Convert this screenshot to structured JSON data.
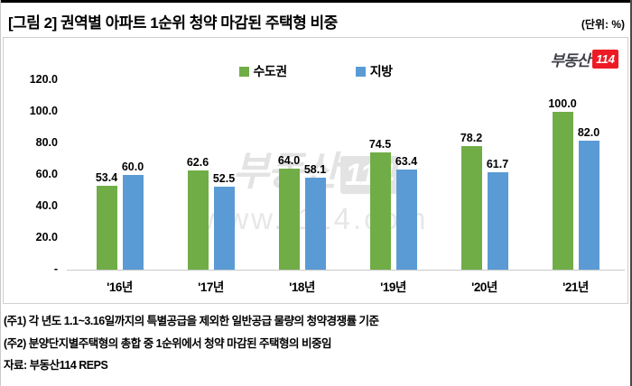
{
  "header": {
    "title": "[그림 2] 권역별 아파트 1순위 청약 마감된 주택형 비중",
    "unit": "(단위: %)"
  },
  "logo": {
    "brand": "부동산",
    "number": "114",
    "brand_color": "#3f4049",
    "box_color": "#ed1c24"
  },
  "watermark": {
    "brand": "부동산",
    "brand_number": "114",
    "url": "www.r114.com"
  },
  "chart_data": {
    "type": "bar",
    "title": "권역별 아파트 1순위 청약 마감된 주택형 비중",
    "unit": "%",
    "categories": [
      "'16년",
      "'17년",
      "'18년",
      "'19년",
      "'20년",
      "'21년"
    ],
    "series": [
      {
        "name": "수도권",
        "color": "#70AD47",
        "values": [
          53.4,
          62.6,
          64.0,
          74.5,
          78.2,
          100.0
        ]
      },
      {
        "name": "지방",
        "color": "#5B9BD5",
        "values": [
          60.0,
          52.5,
          58.1,
          63.4,
          61.7,
          82.0
        ]
      }
    ],
    "ylim": [
      0,
      120
    ],
    "yticks": [
      {
        "label": "120.0",
        "value": 120
      },
      {
        "label": "100.0",
        "value": 100
      },
      {
        "label": "80.0",
        "value": 80
      },
      {
        "label": "60.0",
        "value": 60
      },
      {
        "label": "40.0",
        "value": 40
      },
      {
        "label": "20.0",
        "value": 20
      },
      {
        "label": "-",
        "value": 0
      }
    ],
    "grid": false,
    "legend_position": "top-center",
    "data_labels": true
  },
  "footnotes": [
    "(주1) 각 년도 1.1~3.16일까지의 특별공급을 제외한 일반공급 물량의 청약경쟁률 기준",
    "(주2) 분양단지별주택형의 총합 중 1순위에서 청약 마감된 주택형의 비중임",
    "자료: 부동산114 REPS"
  ]
}
